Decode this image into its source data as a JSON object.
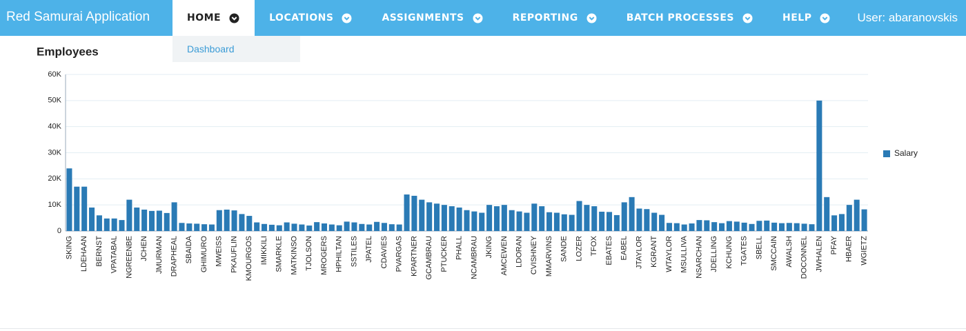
{
  "header": {
    "app_title": "Red Samurai Application",
    "menu": [
      "HOME",
      "LOCATIONS",
      "ASSIGNMENTS",
      "REPORTING",
      "BATCH PROCESSES",
      "HELP"
    ],
    "user": "User: abaranovskis"
  },
  "dropdown": [
    "Dashboard"
  ],
  "chart_data": {
    "type": "bar",
    "title": "Employees",
    "categories": [
      "SKING",
      null,
      "LDEHAAN",
      null,
      "BERNST",
      null,
      "VPATABAL",
      null,
      "NGREENBE",
      null,
      "JCHEN",
      null,
      "JMURMAN",
      null,
      "DRAPHEAL",
      null,
      "SBAIDA",
      null,
      "GHIMURO",
      null,
      "MWEISS",
      null,
      "PKAUFLIN",
      null,
      "KMOURGOS",
      null,
      "IMIKKILI",
      null,
      "SMARKLE",
      null,
      "MATKINSO",
      null,
      "TJOLSON",
      null,
      "MROGERS",
      null,
      "HPHILTAN",
      null,
      "SSTILES",
      null,
      "JPATEL",
      null,
      "CDAVIES",
      null,
      "PVARGAS",
      null,
      "KPARTNER",
      null,
      "GCAMBRAU",
      null,
      "PTUCKER",
      null,
      "PHALL",
      null,
      "NCAMBRAU",
      null,
      "JKING",
      null,
      "AMCEWEN",
      null,
      "LDORAN",
      null,
      "CVISHNEY",
      null,
      "MMARVINS",
      null,
      "SANDE",
      null,
      "LOZER",
      null,
      "TFOX",
      null,
      "EBATES",
      null,
      "EABEL",
      null,
      "JTAYLOR",
      null,
      "KGRANT",
      null,
      "WTAYLOR",
      null,
      "MSULLIVA",
      null,
      "NSARCHAN",
      null,
      "JDELLING",
      null,
      "KCHUNG",
      null,
      "TGATES",
      null,
      "SBELL",
      null,
      "SMCCAIN",
      null,
      "AWALSH",
      null,
      "DOCONNEL",
      null,
      "JWHALEN",
      null,
      "PFAY",
      null,
      "HBAER",
      null,
      "WGIETZ"
    ],
    "series": [
      {
        "name": "Salary",
        "color": "#2a7ab5",
        "values": [
          24000,
          17000,
          17000,
          9000,
          6000,
          4800,
          4800,
          4200,
          12000,
          9000,
          8200,
          7700,
          7800,
          6900,
          11000,
          3100,
          2900,
          2800,
          2600,
          2500,
          8000,
          8200,
          7900,
          6500,
          5800,
          3300,
          2700,
          2400,
          2200,
          3300,
          2800,
          2500,
          2100,
          3400,
          2900,
          2500,
          2200,
          3600,
          3300,
          2700,
          2500,
          3500,
          3100,
          2600,
          2500,
          14000,
          13500,
          12000,
          11000,
          10500,
          10000,
          9500,
          9000,
          8000,
          7500,
          7000,
          10000,
          9500,
          10000,
          8000,
          7500,
          7000,
          10500,
          9500,
          7200,
          7000,
          6400,
          6200,
          11500,
          10000,
          9500,
          7400,
          7300,
          6100,
          11000,
          13000,
          8600,
          8400,
          7000,
          6200,
          3100,
          3000,
          2500,
          2900,
          4200,
          4100,
          3400,
          3000,
          3800,
          3600,
          3200,
          2700,
          3900,
          4000,
          3200,
          3000,
          3100,
          3000,
          2800,
          2600,
          50000,
          13000,
          6000,
          6500,
          10000,
          12000,
          8300
        ]
      }
    ],
    "ylim": [
      0,
      60000
    ],
    "yticks": [
      0,
      {
        "value": 10000,
        "label": "10K"
      },
      {
        "value": 20000,
        "label": "20K"
      },
      {
        "value": 30000,
        "label": "30K"
      },
      {
        "value": 40000,
        "label": "40K"
      },
      {
        "value": 50000,
        "label": "50K"
      },
      {
        "value": 60000,
        "label": "60K"
      }
    ],
    "grid": true,
    "legend": "right"
  }
}
